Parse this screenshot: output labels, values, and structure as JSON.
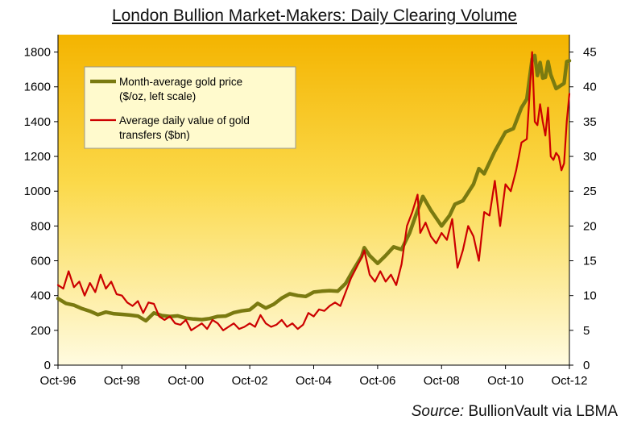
{
  "title": "London Bullion Market-Makers:  Daily Clearing Volume",
  "source": {
    "label": "Source:",
    "text": "BullionVault via LBMA"
  },
  "colors": {
    "gold_line": "#7a7a10",
    "value_line": "#cc0000",
    "bg_top": "#f4b400",
    "bg_bottom": "#fffbe0",
    "legend_bg": "#fffacd"
  },
  "chart_data": {
    "type": "line",
    "title": "London Bullion Market-Makers:  Daily Clearing Volume",
    "x_ticks": [
      "Oct-96",
      "Oct-98",
      "Oct-00",
      "Oct-02",
      "Oct-04",
      "Oct-06",
      "Oct-08",
      "Oct-10",
      "Oct-12"
    ],
    "xlim": [
      "1996-10",
      "2012-10"
    ],
    "y_left": {
      "lim": [
        0,
        1900
      ],
      "ticks": [
        "0",
        "200",
        "400",
        "600",
        "800",
        "1000",
        "1200",
        "1400",
        "1600",
        "1800"
      ]
    },
    "y_right": {
      "lim": [
        0,
        47.5
      ],
      "ticks": [
        "0",
        "5",
        "10",
        "15",
        "20",
        "25",
        "30",
        "35",
        "40",
        "45"
      ]
    },
    "legend": [
      {
        "label": "Month-average gold price (left scale)",
        "lines": [
          "Month-average gold price",
          "($/oz, left scale)"
        ],
        "color": "#7a7a10"
      },
      {
        "label": "Average daily value of gold transfers ($bn)",
        "lines": [
          "Average daily value of gold",
          "transfers ($bn)"
        ],
        "color": "#cc0000"
      }
    ],
    "series": [
      {
        "name": "Month-average gold price ($/oz, left scale)",
        "axis": "left",
        "points": [
          [
            "1996-10",
            383
          ],
          [
            "1997-01",
            355
          ],
          [
            "1997-04",
            345
          ],
          [
            "1997-07",
            325
          ],
          [
            "1997-10",
            310
          ],
          [
            "1998-01",
            290
          ],
          [
            "1998-04",
            305
          ],
          [
            "1998-07",
            295
          ],
          [
            "1998-10",
            292
          ],
          [
            "1999-01",
            288
          ],
          [
            "1999-04",
            282
          ],
          [
            "1999-07",
            255
          ],
          [
            "1999-10",
            300
          ],
          [
            "2000-01",
            285
          ],
          [
            "2000-04",
            280
          ],
          [
            "2000-07",
            283
          ],
          [
            "2000-10",
            270
          ],
          [
            "2001-01",
            265
          ],
          [
            "2001-04",
            262
          ],
          [
            "2001-07",
            268
          ],
          [
            "2001-10",
            280
          ],
          [
            "2002-01",
            282
          ],
          [
            "2002-04",
            302
          ],
          [
            "2002-07",
            312
          ],
          [
            "2002-10",
            318
          ],
          [
            "2003-01",
            355
          ],
          [
            "2003-04",
            328
          ],
          [
            "2003-07",
            350
          ],
          [
            "2003-10",
            385
          ],
          [
            "2004-01",
            410
          ],
          [
            "2004-04",
            400
          ],
          [
            "2004-07",
            395
          ],
          [
            "2004-10",
            420
          ],
          [
            "2005-01",
            425
          ],
          [
            "2005-04",
            428
          ],
          [
            "2005-07",
            425
          ],
          [
            "2005-10",
            470
          ],
          [
            "2006-01",
            550
          ],
          [
            "2006-04",
            625
          ],
          [
            "2006-05",
            675
          ],
          [
            "2006-07",
            630
          ],
          [
            "2006-10",
            585
          ],
          [
            "2007-01",
            630
          ],
          [
            "2007-04",
            680
          ],
          [
            "2007-07",
            665
          ],
          [
            "2007-10",
            760
          ],
          [
            "2008-01",
            890
          ],
          [
            "2008-03",
            970
          ],
          [
            "2008-06",
            890
          ],
          [
            "2008-10",
            800
          ],
          [
            "2009-01",
            860
          ],
          [
            "2009-03",
            925
          ],
          [
            "2009-06",
            945
          ],
          [
            "2009-10",
            1040
          ],
          [
            "2009-12",
            1130
          ],
          [
            "2010-02",
            1100
          ],
          [
            "2010-06",
            1230
          ],
          [
            "2010-10",
            1340
          ],
          [
            "2011-01",
            1360
          ],
          [
            "2011-04",
            1480
          ],
          [
            "2011-06",
            1530
          ],
          [
            "2011-08",
            1760
          ],
          [
            "2011-09",
            1780
          ],
          [
            "2011-10",
            1665
          ],
          [
            "2011-11",
            1740
          ],
          [
            "2011-12",
            1650
          ],
          [
            "2012-01",
            1655
          ],
          [
            "2012-02",
            1745
          ],
          [
            "2012-03",
            1670
          ],
          [
            "2012-05",
            1590
          ],
          [
            "2012-06",
            1600
          ],
          [
            "2012-08",
            1620
          ],
          [
            "2012-09",
            1745
          ],
          [
            "2012-10",
            1750
          ]
        ]
      },
      {
        "name": "Average daily value of gold transfers ($bn)",
        "axis": "right",
        "points": [
          [
            "1996-10",
            11.5
          ],
          [
            "1996-12",
            11.0
          ],
          [
            "1997-02",
            13.5
          ],
          [
            "1997-04",
            11.2
          ],
          [
            "1997-06",
            12.0
          ],
          [
            "1997-08",
            10.0
          ],
          [
            "1997-10",
            11.8
          ],
          [
            "1997-12",
            10.5
          ],
          [
            "1998-02",
            13.0
          ],
          [
            "1998-04",
            11.0
          ],
          [
            "1998-06",
            12.0
          ],
          [
            "1998-08",
            10.2
          ],
          [
            "1998-10",
            10.0
          ],
          [
            "1998-12",
            9.0
          ],
          [
            "1999-02",
            8.5
          ],
          [
            "1999-04",
            9.2
          ],
          [
            "1999-06",
            7.5
          ],
          [
            "1999-08",
            9.0
          ],
          [
            "1999-10",
            8.8
          ],
          [
            "1999-12",
            7.0
          ],
          [
            "2000-02",
            6.5
          ],
          [
            "2000-04",
            7.0
          ],
          [
            "2000-06",
            6.0
          ],
          [
            "2000-08",
            5.8
          ],
          [
            "2000-10",
            6.5
          ],
          [
            "2000-12",
            5.0
          ],
          [
            "2001-02",
            5.5
          ],
          [
            "2001-04",
            6.0
          ],
          [
            "2001-06",
            5.2
          ],
          [
            "2001-08",
            6.5
          ],
          [
            "2001-10",
            6.0
          ],
          [
            "2001-12",
            5.0
          ],
          [
            "2002-02",
            5.5
          ],
          [
            "2002-04",
            6.0
          ],
          [
            "2002-06",
            5.2
          ],
          [
            "2002-08",
            5.5
          ],
          [
            "2002-10",
            6.0
          ],
          [
            "2002-12",
            5.5
          ],
          [
            "2003-02",
            7.2
          ],
          [
            "2003-04",
            6.0
          ],
          [
            "2003-06",
            5.5
          ],
          [
            "2003-08",
            5.8
          ],
          [
            "2003-10",
            6.5
          ],
          [
            "2003-12",
            5.5
          ],
          [
            "2004-02",
            6.0
          ],
          [
            "2004-04",
            5.2
          ],
          [
            "2004-06",
            5.8
          ],
          [
            "2004-08",
            7.5
          ],
          [
            "2004-10",
            7.0
          ],
          [
            "2004-12",
            8.0
          ],
          [
            "2005-02",
            7.8
          ],
          [
            "2005-04",
            8.5
          ],
          [
            "2005-06",
            9.0
          ],
          [
            "2005-08",
            8.5
          ],
          [
            "2005-10",
            10.5
          ],
          [
            "2005-12",
            12.5
          ],
          [
            "2006-02",
            14.0
          ],
          [
            "2006-04",
            15.5
          ],
          [
            "2006-05",
            16.5
          ],
          [
            "2006-07",
            13.0
          ],
          [
            "2006-09",
            12.0
          ],
          [
            "2006-11",
            13.5
          ],
          [
            "2007-01",
            12.0
          ],
          [
            "2007-03",
            13.0
          ],
          [
            "2007-05",
            11.5
          ],
          [
            "2007-07",
            14.5
          ],
          [
            "2007-09",
            20.0
          ],
          [
            "2007-11",
            22.0
          ],
          [
            "2008-01",
            24.5
          ],
          [
            "2008-02",
            19.0
          ],
          [
            "2008-04",
            20.5
          ],
          [
            "2008-06",
            18.5
          ],
          [
            "2008-08",
            17.5
          ],
          [
            "2008-10",
            19.0
          ],
          [
            "2008-12",
            18.0
          ],
          [
            "2009-02",
            21.0
          ],
          [
            "2009-04",
            14.0
          ],
          [
            "2009-06",
            16.5
          ],
          [
            "2009-08",
            20.0
          ],
          [
            "2009-10",
            18.5
          ],
          [
            "2009-12",
            15.0
          ],
          [
            "2010-02",
            22.0
          ],
          [
            "2010-04",
            21.5
          ],
          [
            "2010-06",
            26.5
          ],
          [
            "2010-08",
            20.0
          ],
          [
            "2010-10",
            26.0
          ],
          [
            "2010-12",
            25.0
          ],
          [
            "2011-02",
            28.0
          ],
          [
            "2011-04",
            32.0
          ],
          [
            "2011-06",
            32.5
          ],
          [
            "2011-08",
            45.0
          ],
          [
            "2011-09",
            35.0
          ],
          [
            "2011-10",
            34.5
          ],
          [
            "2011-11",
            37.5
          ],
          [
            "2011-12",
            35.0
          ],
          [
            "2012-01",
            33.0
          ],
          [
            "2012-02",
            37.0
          ],
          [
            "2012-03",
            30.0
          ],
          [
            "2012-04",
            29.5
          ],
          [
            "2012-05",
            30.5
          ],
          [
            "2012-06",
            30.0
          ],
          [
            "2012-07",
            28.0
          ],
          [
            "2012-08",
            29.0
          ],
          [
            "2012-09",
            35.0
          ],
          [
            "2012-10",
            39.0
          ]
        ]
      }
    ]
  }
}
